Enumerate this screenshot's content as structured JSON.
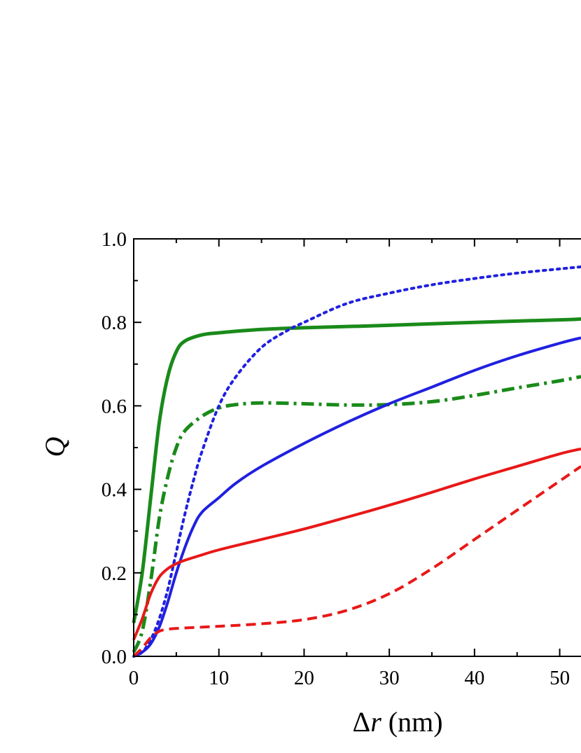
{
  "chart_data": {
    "type": "line",
    "title": "",
    "xlabel": {
      "prefix": "Δ",
      "var": "r",
      "suffix": " (nm)"
    },
    "ylabel": "Q",
    "xlim": [
      0,
      52.5
    ],
    "ylim": [
      0,
      1
    ],
    "x_ticks": [
      "0",
      "10",
      "20",
      "30",
      "40",
      "50"
    ],
    "y_ticks": [
      "0.0",
      "0.2",
      "0.4",
      "0.6",
      "0.8",
      "1.0"
    ],
    "grid": false,
    "legend": "none",
    "series": [
      {
        "color": "#1a8a1a",
        "style": "solid",
        "width": 5,
        "points": [
          [
            0,
            0.08
          ],
          [
            1,
            0.2
          ],
          [
            2,
            0.38
          ],
          [
            3,
            0.56
          ],
          [
            4,
            0.67
          ],
          [
            5,
            0.73
          ],
          [
            6,
            0.755
          ],
          [
            8,
            0.77
          ],
          [
            10,
            0.775
          ],
          [
            15,
            0.783
          ],
          [
            20,
            0.787
          ],
          [
            30,
            0.793
          ],
          [
            40,
            0.8
          ],
          [
            50,
            0.806
          ],
          [
            52.5,
            0.808
          ]
        ]
      },
      {
        "color": "#1a8a1a",
        "style": "dashdot",
        "width": 5,
        "points": [
          [
            0,
            0.01
          ],
          [
            1,
            0.06
          ],
          [
            2,
            0.18
          ],
          [
            3,
            0.33
          ],
          [
            4,
            0.43
          ],
          [
            5,
            0.5
          ],
          [
            6,
            0.54
          ],
          [
            8,
            0.575
          ],
          [
            10,
            0.595
          ],
          [
            12,
            0.603
          ],
          [
            15,
            0.607
          ],
          [
            20,
            0.605
          ],
          [
            25,
            0.602
          ],
          [
            30,
            0.603
          ],
          [
            35,
            0.61
          ],
          [
            40,
            0.625
          ],
          [
            45,
            0.643
          ],
          [
            50,
            0.66
          ],
          [
            52.5,
            0.67
          ]
        ]
      },
      {
        "color": "#2020e0",
        "style": "dotted",
        "width": 4,
        "points": [
          [
            0,
            0.0
          ],
          [
            1,
            0.01
          ],
          [
            2,
            0.04
          ],
          [
            3,
            0.09
          ],
          [
            4,
            0.16
          ],
          [
            5,
            0.25
          ],
          [
            6,
            0.34
          ],
          [
            7,
            0.42
          ],
          [
            8,
            0.49
          ],
          [
            10,
            0.6
          ],
          [
            12,
            0.67
          ],
          [
            15,
            0.74
          ],
          [
            18,
            0.78
          ],
          [
            20,
            0.8
          ],
          [
            25,
            0.845
          ],
          [
            30,
            0.87
          ],
          [
            35,
            0.89
          ],
          [
            40,
            0.905
          ],
          [
            45,
            0.918
          ],
          [
            50,
            0.928
          ],
          [
            52.5,
            0.933
          ]
        ]
      },
      {
        "color": "#2020e0",
        "style": "solid",
        "width": 4,
        "points": [
          [
            0,
            0.0
          ],
          [
            1,
            0.01
          ],
          [
            2,
            0.03
          ],
          [
            3,
            0.07
          ],
          [
            4,
            0.13
          ],
          [
            5,
            0.2
          ],
          [
            6,
            0.26
          ],
          [
            7,
            0.31
          ],
          [
            8,
            0.345
          ],
          [
            10,
            0.38
          ],
          [
            12,
            0.415
          ],
          [
            15,
            0.455
          ],
          [
            20,
            0.51
          ],
          [
            25,
            0.56
          ],
          [
            30,
            0.605
          ],
          [
            35,
            0.645
          ],
          [
            40,
            0.685
          ],
          [
            45,
            0.72
          ],
          [
            50,
            0.75
          ],
          [
            52.5,
            0.763
          ]
        ]
      },
      {
        "color": "#e81818",
        "style": "solid",
        "width": 4,
        "points": [
          [
            0,
            0.04
          ],
          [
            1,
            0.09
          ],
          [
            2,
            0.15
          ],
          [
            3,
            0.19
          ],
          [
            4,
            0.21
          ],
          [
            5,
            0.222
          ],
          [
            6,
            0.23
          ],
          [
            8,
            0.243
          ],
          [
            10,
            0.255
          ],
          [
            15,
            0.28
          ],
          [
            20,
            0.305
          ],
          [
            25,
            0.333
          ],
          [
            30,
            0.362
          ],
          [
            35,
            0.393
          ],
          [
            40,
            0.425
          ],
          [
            45,
            0.455
          ],
          [
            50,
            0.485
          ],
          [
            52.5,
            0.497
          ]
        ]
      },
      {
        "color": "#e81818",
        "style": "dashed",
        "width": 4,
        "points": [
          [
            0,
            0.0
          ],
          [
            1,
            0.02
          ],
          [
            2,
            0.045
          ],
          [
            3,
            0.06
          ],
          [
            4,
            0.065
          ],
          [
            6,
            0.068
          ],
          [
            10,
            0.072
          ],
          [
            15,
            0.078
          ],
          [
            20,
            0.088
          ],
          [
            25,
            0.11
          ],
          [
            30,
            0.15
          ],
          [
            35,
            0.21
          ],
          [
            40,
            0.28
          ],
          [
            45,
            0.35
          ],
          [
            50,
            0.42
          ],
          [
            52.5,
            0.455
          ]
        ]
      }
    ]
  }
}
